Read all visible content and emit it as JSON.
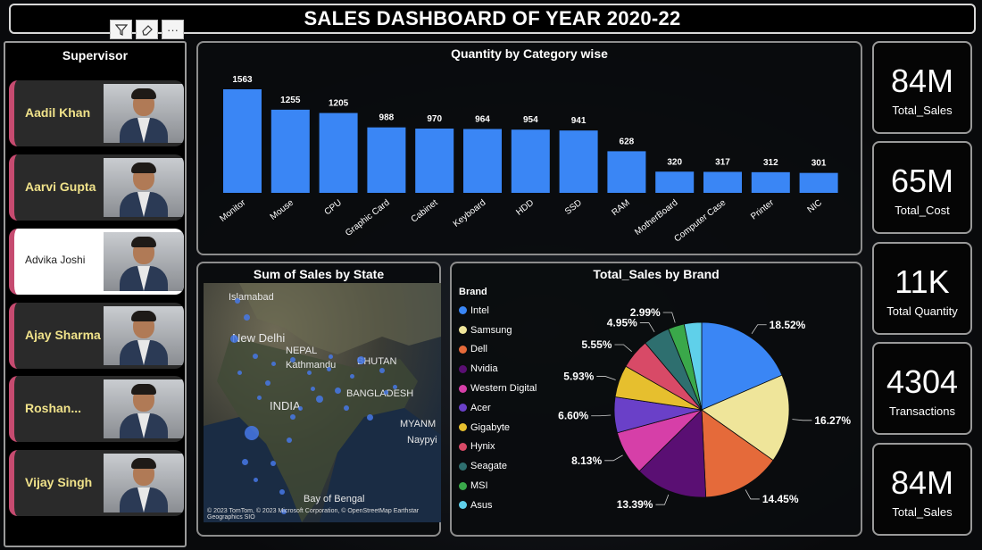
{
  "dashboard": {
    "title": "SALES DASHBOARD OF YEAR 2020-22"
  },
  "slicer": {
    "title": "Supervisor",
    "toolbar": {
      "filter_icon": "funnel-icon",
      "eraser_icon": "eraser-icon",
      "more_label": "···"
    },
    "items": [
      {
        "name": "Aadil Khan",
        "selected": false
      },
      {
        "name": "Aarvi Gupta",
        "selected": false
      },
      {
        "name": "Advika Joshi",
        "selected": true
      },
      {
        "name": "Ajay Sharma",
        "selected": false
      },
      {
        "name": "Roshan...",
        "selected": false
      },
      {
        "name": "Vijay Singh",
        "selected": false
      }
    ]
  },
  "kpis": [
    {
      "value": "84M",
      "label": "Total_Sales"
    },
    {
      "value": "65M",
      "label": "Total_Cost"
    },
    {
      "value": "11K",
      "label": "Total Quantity"
    },
    {
      "value": "4304",
      "label": "Transactions"
    },
    {
      "value": "84M",
      "label": "Total_Sales"
    }
  ],
  "map": {
    "title": "Sum of Sales by State",
    "labels": [
      "Islamabad",
      "New Delhi",
      "NEPAL",
      "Kathmandu",
      "BHUTAN",
      "BANGLADESH",
      "INDIA",
      "MYANM",
      "Naypyi",
      "Bay of Bengal"
    ],
    "credit": "© 2023 TomTom, © 2023 Microsoft Corporation, © OpenStreetMap Earthstar Geographics SIO"
  },
  "chart_data": [
    {
      "type": "bar",
      "title": "Quantity by Category wise",
      "categories": [
        "Monitor",
        "Mouse",
        "CPU",
        "Graphic Card",
        "Cabinet",
        "Keyboard",
        "HDD",
        "SSD",
        "RAM",
        "MotherBoard",
        "Computer Case",
        "Printer",
        "NIC"
      ],
      "values": [
        1563,
        1255,
        1205,
        988,
        970,
        964,
        954,
        941,
        628,
        320,
        317,
        312,
        301
      ],
      "xlabel": "",
      "ylabel": "",
      "ylim": [
        0,
        1563
      ],
      "grid": false,
      "color": "#3a86f5"
    },
    {
      "type": "pie",
      "title": "Total_Sales by Brand",
      "legend_title": "Brand",
      "labels": [
        "Intel",
        "Samsung",
        "Dell",
        "Nvidia",
        "Western Digital",
        "Acer",
        "Gigabyte",
        "Hynix",
        "Seagate",
        "MSI",
        "Asus"
      ],
      "values": [
        18.52,
        16.27,
        14.45,
        13.39,
        8.13,
        6.6,
        5.93,
        5.55,
        4.95,
        2.99,
        3.22
      ],
      "data_labels": [
        "18.52%",
        "16.27%",
        "14.45%",
        "13.39%",
        "8.13%",
        "6.60%",
        "5.93%",
        "5.55%",
        "4.95%",
        "2.99%",
        ""
      ],
      "colors": [
        "#3a86f5",
        "#efe59a",
        "#e56a3a",
        "#5a0f73",
        "#d63fa8",
        "#6a40c8",
        "#e6bf2e",
        "#d84a67",
        "#2e6f6f",
        "#3aa84a",
        "#5fd0ea"
      ],
      "legend_position": "left"
    }
  ]
}
